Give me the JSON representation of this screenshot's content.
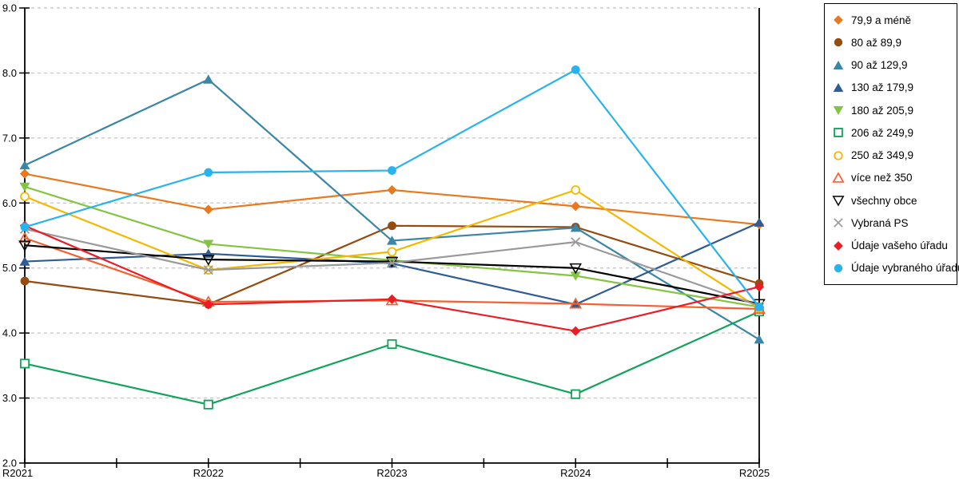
{
  "chart_data": {
    "type": "line",
    "title": "",
    "xlabel": "",
    "ylabel": "",
    "x": [
      "R2021",
      "R2022",
      "R2023",
      "R2024",
      "R2025"
    ],
    "ylim": [
      2.0,
      9.0
    ],
    "ytick_step": 1.0,
    "ytick_labels": [
      "2.0",
      "3.0",
      "4.0",
      "5.0",
      "6.0",
      "7.0",
      "8.0",
      "9.0"
    ],
    "grid": "horizontal dashed gridlines at each 1.0",
    "legend_position": "right",
    "axis_color": "#000000",
    "grid_color": "#c3c3c3",
    "series": [
      {
        "name": "79,9 a méně",
        "color": "#e8791e",
        "marker": "diamond",
        "values": [
          6.45,
          5.9,
          6.2,
          5.95,
          5.67
        ]
      },
      {
        "name": "80 až 89,9",
        "color": "#964b0f",
        "marker": "circle",
        "values": [
          4.8,
          4.44,
          5.65,
          5.63,
          4.76
        ]
      },
      {
        "name": "90 až 129,9",
        "color": "#3a86a6",
        "marker": "triangle-up",
        "values": [
          6.58,
          7.9,
          5.42,
          5.62,
          3.9
        ]
      },
      {
        "name": "130 až 179,9",
        "color": "#2e5c96",
        "marker": "triangle-up",
        "values": [
          5.1,
          5.22,
          5.07,
          4.44,
          5.7
        ]
      },
      {
        "name": "180 až 205,9",
        "color": "#83c441",
        "marker": "triangle-down",
        "values": [
          6.25,
          5.37,
          5.12,
          4.88,
          4.4
        ]
      },
      {
        "name": "206 až 249,9",
        "color": "#12a35b",
        "marker": "square-open",
        "values": [
          3.53,
          2.9,
          3.83,
          3.06,
          4.33
        ]
      },
      {
        "name": "250 až 349,9",
        "color": "#f5b800",
        "marker": "circle-open",
        "values": [
          6.1,
          4.97,
          5.25,
          6.2,
          4.38
        ]
      },
      {
        "name": "více než 350",
        "color": "#f4612e",
        "marker": "triangle-up-open",
        "values": [
          5.46,
          4.48,
          4.5,
          4.45,
          4.37
        ]
      },
      {
        "name": "všechny obce",
        "color": "#000000",
        "marker": "triangle-down-open",
        "values": [
          5.35,
          5.13,
          5.1,
          5.0,
          4.45
        ]
      },
      {
        "name": "Vybraná PS",
        "color": "#999999",
        "marker": "x",
        "values": [
          5.6,
          4.97,
          5.08,
          5.4,
          4.42
        ]
      },
      {
        "name": "Údaje vašeho úřadu",
        "color": "#ed1c24",
        "marker": "diamond",
        "values": [
          5.65,
          4.44,
          4.52,
          4.03,
          4.71
        ]
      },
      {
        "name": "Údaje vybraného úřadu",
        "color": "#29b3ec",
        "marker": "circle",
        "values": [
          5.63,
          6.47,
          6.5,
          8.05,
          4.4
        ]
      }
    ]
  }
}
